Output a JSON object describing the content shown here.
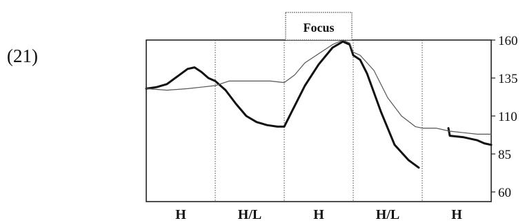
{
  "example_number": "(21)",
  "chart_data": {
    "type": "line",
    "title": "",
    "xlabel": "",
    "ylabel": "",
    "ylim": [
      60,
      160
    ],
    "y_ticks": [
      160,
      135,
      110,
      85,
      60
    ],
    "y_axis_side": "right",
    "grid": false,
    "segments": [
      "H",
      "H/L",
      "H",
      "H/L",
      "H"
    ],
    "focus_segment_index": 2,
    "focus_label": "Focus",
    "x_domain": [
      0,
      5
    ],
    "series": [
      {
        "style": "thick",
        "color": "#111111",
        "points": [
          [
            0,
            128
          ],
          [
            0.15,
            129
          ],
          [
            0.3,
            131
          ],
          [
            0.45,
            136
          ],
          [
            0.6,
            141
          ],
          [
            0.7,
            142
          ],
          [
            0.8,
            139
          ],
          [
            0.9,
            135
          ],
          [
            1,
            133
          ],
          [
            1.15,
            127
          ],
          [
            1.3,
            118
          ],
          [
            1.45,
            110
          ],
          [
            1.6,
            106
          ],
          [
            1.75,
            104
          ],
          [
            1.9,
            103
          ],
          [
            2,
            103
          ],
          [
            2.1,
            112
          ],
          [
            2.3,
            130
          ],
          [
            2.5,
            144
          ],
          [
            2.7,
            155
          ],
          [
            2.85,
            159
          ],
          [
            2.95,
            157
          ],
          [
            3,
            150
          ],
          [
            3.1,
            147
          ],
          [
            3.2,
            138
          ],
          [
            3.4,
            113
          ],
          [
            3.6,
            91
          ],
          [
            3.8,
            81
          ],
          [
            3.95,
            76
          ]
        ]
      },
      {
        "style": "thick",
        "color": "#111111",
        "points": [
          [
            4.38,
            102
          ],
          [
            4.4,
            97
          ],
          [
            4.6,
            96
          ],
          [
            4.8,
            94
          ],
          [
            4.9,
            92
          ],
          [
            5,
            91
          ]
        ]
      },
      {
        "style": "thin",
        "color": "#555555",
        "points": [
          [
            0,
            128
          ],
          [
            0.3,
            127
          ],
          [
            0.6,
            128
          ],
          [
            0.8,
            129
          ],
          [
            1,
            130
          ],
          [
            1.2,
            133
          ],
          [
            1.5,
            133
          ],
          [
            1.8,
            133
          ],
          [
            2,
            132
          ],
          [
            2.15,
            137
          ],
          [
            2.3,
            145
          ],
          [
            2.5,
            151
          ],
          [
            2.7,
            157
          ],
          [
            2.85,
            160
          ],
          [
            2.95,
            158
          ],
          [
            3,
            152
          ],
          [
            3.1,
            150
          ],
          [
            3.3,
            140
          ],
          [
            3.5,
            122
          ],
          [
            3.7,
            110
          ],
          [
            3.9,
            103
          ],
          [
            4,
            102
          ],
          [
            4.2,
            102
          ],
          [
            4.4,
            100
          ],
          [
            4.6,
            99
          ],
          [
            4.8,
            98
          ],
          [
            5,
            98
          ]
        ]
      }
    ]
  }
}
